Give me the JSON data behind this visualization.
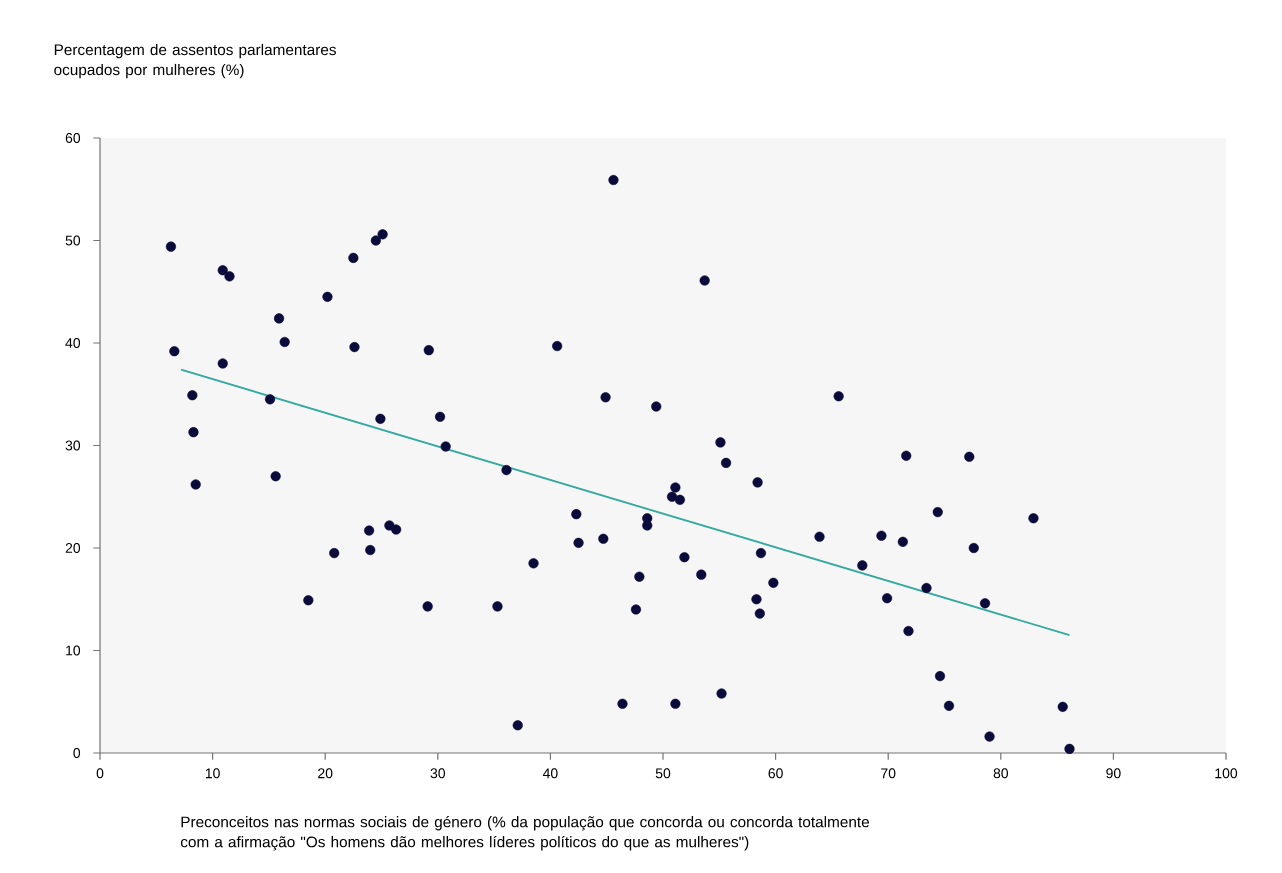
{
  "chart_data": {
    "type": "scatter",
    "xlabel": "Preconceitos nas normas sociais de género (% da população que concorda ou concorda totalmente com a afirmação \"Os homens dão melhores líderes políticos do que as mulheres\")",
    "ylabel": "Percentagem de assentos parlamentares ocupados por mulheres (%)",
    "xlim": [
      0,
      100
    ],
    "xticks": [
      0,
      10,
      20,
      30,
      40,
      50,
      60,
      70,
      80,
      90,
      100
    ],
    "ylim": [
      0,
      60
    ],
    "yticks": [
      0,
      10,
      20,
      30,
      40,
      50,
      60
    ],
    "marker": "circle",
    "series": [
      {
        "color": "#0b0b3b",
        "x": [
          6.3,
          6.6,
          8.2,
          8.3,
          8.5,
          10.9,
          11.5,
          10.9,
          15.1,
          15.6,
          15.9,
          16.4,
          18.5,
          20.2,
          20.8,
          22.5,
          22.6,
          23.9,
          24.0,
          24.5,
          25.1,
          24.9,
          25.7,
          26.3,
          29.2,
          29.1,
          30.2,
          30.7,
          35.3,
          36.1,
          37.1,
          38.5,
          40.6,
          42.3,
          42.5,
          44.7,
          44.9,
          45.6,
          46.4,
          47.9,
          47.6,
          48.6,
          48.6,
          49.4,
          50.8,
          51.1,
          51.5,
          51.1,
          51.9,
          53.4,
          53.7,
          55.1,
          55.6,
          55.2,
          58.3,
          58.4,
          58.7,
          58.6,
          59.8,
          63.9,
          65.6,
          67.7,
          69.4,
          69.9,
          71.6,
          71.3,
          71.8,
          73.4,
          74.4,
          74.6,
          75.4,
          77.2,
          77.6,
          78.6,
          79.0,
          82.9,
          85.5,
          86.1
        ],
        "values": [
          49.4,
          39.2,
          34.9,
          31.3,
          26.2,
          47.1,
          46.5,
          38.0,
          34.5,
          27.0,
          42.4,
          40.1,
          14.9,
          44.5,
          19.5,
          48.3,
          39.6,
          21.7,
          19.8,
          50.0,
          50.6,
          32.6,
          22.2,
          21.8,
          39.3,
          14.3,
          32.8,
          29.9,
          14.3,
          27.6,
          2.7,
          18.5,
          39.7,
          23.3,
          20.5,
          20.9,
          34.7,
          55.9,
          4.8,
          17.2,
          14.0,
          22.9,
          22.2,
          33.8,
          25.0,
          25.9,
          24.7,
          4.8,
          19.1,
          17.4,
          46.1,
          30.3,
          28.3,
          5.8,
          15.0,
          26.4,
          19.5,
          13.6,
          16.6,
          21.1,
          34.8,
          18.3,
          21.2,
          15.1,
          29.0,
          20.6,
          11.9,
          16.1,
          23.5,
          7.5,
          4.6,
          28.9,
          20.0,
          14.6,
          1.6,
          22.9,
          4.5,
          0.4
        ]
      },
      {
        "type": "line",
        "marker": "none",
        "color": "#34a99f",
        "x": [
          7.2,
          86.1
        ],
        "values": [
          37.4,
          11.5
        ]
      }
    ]
  }
}
